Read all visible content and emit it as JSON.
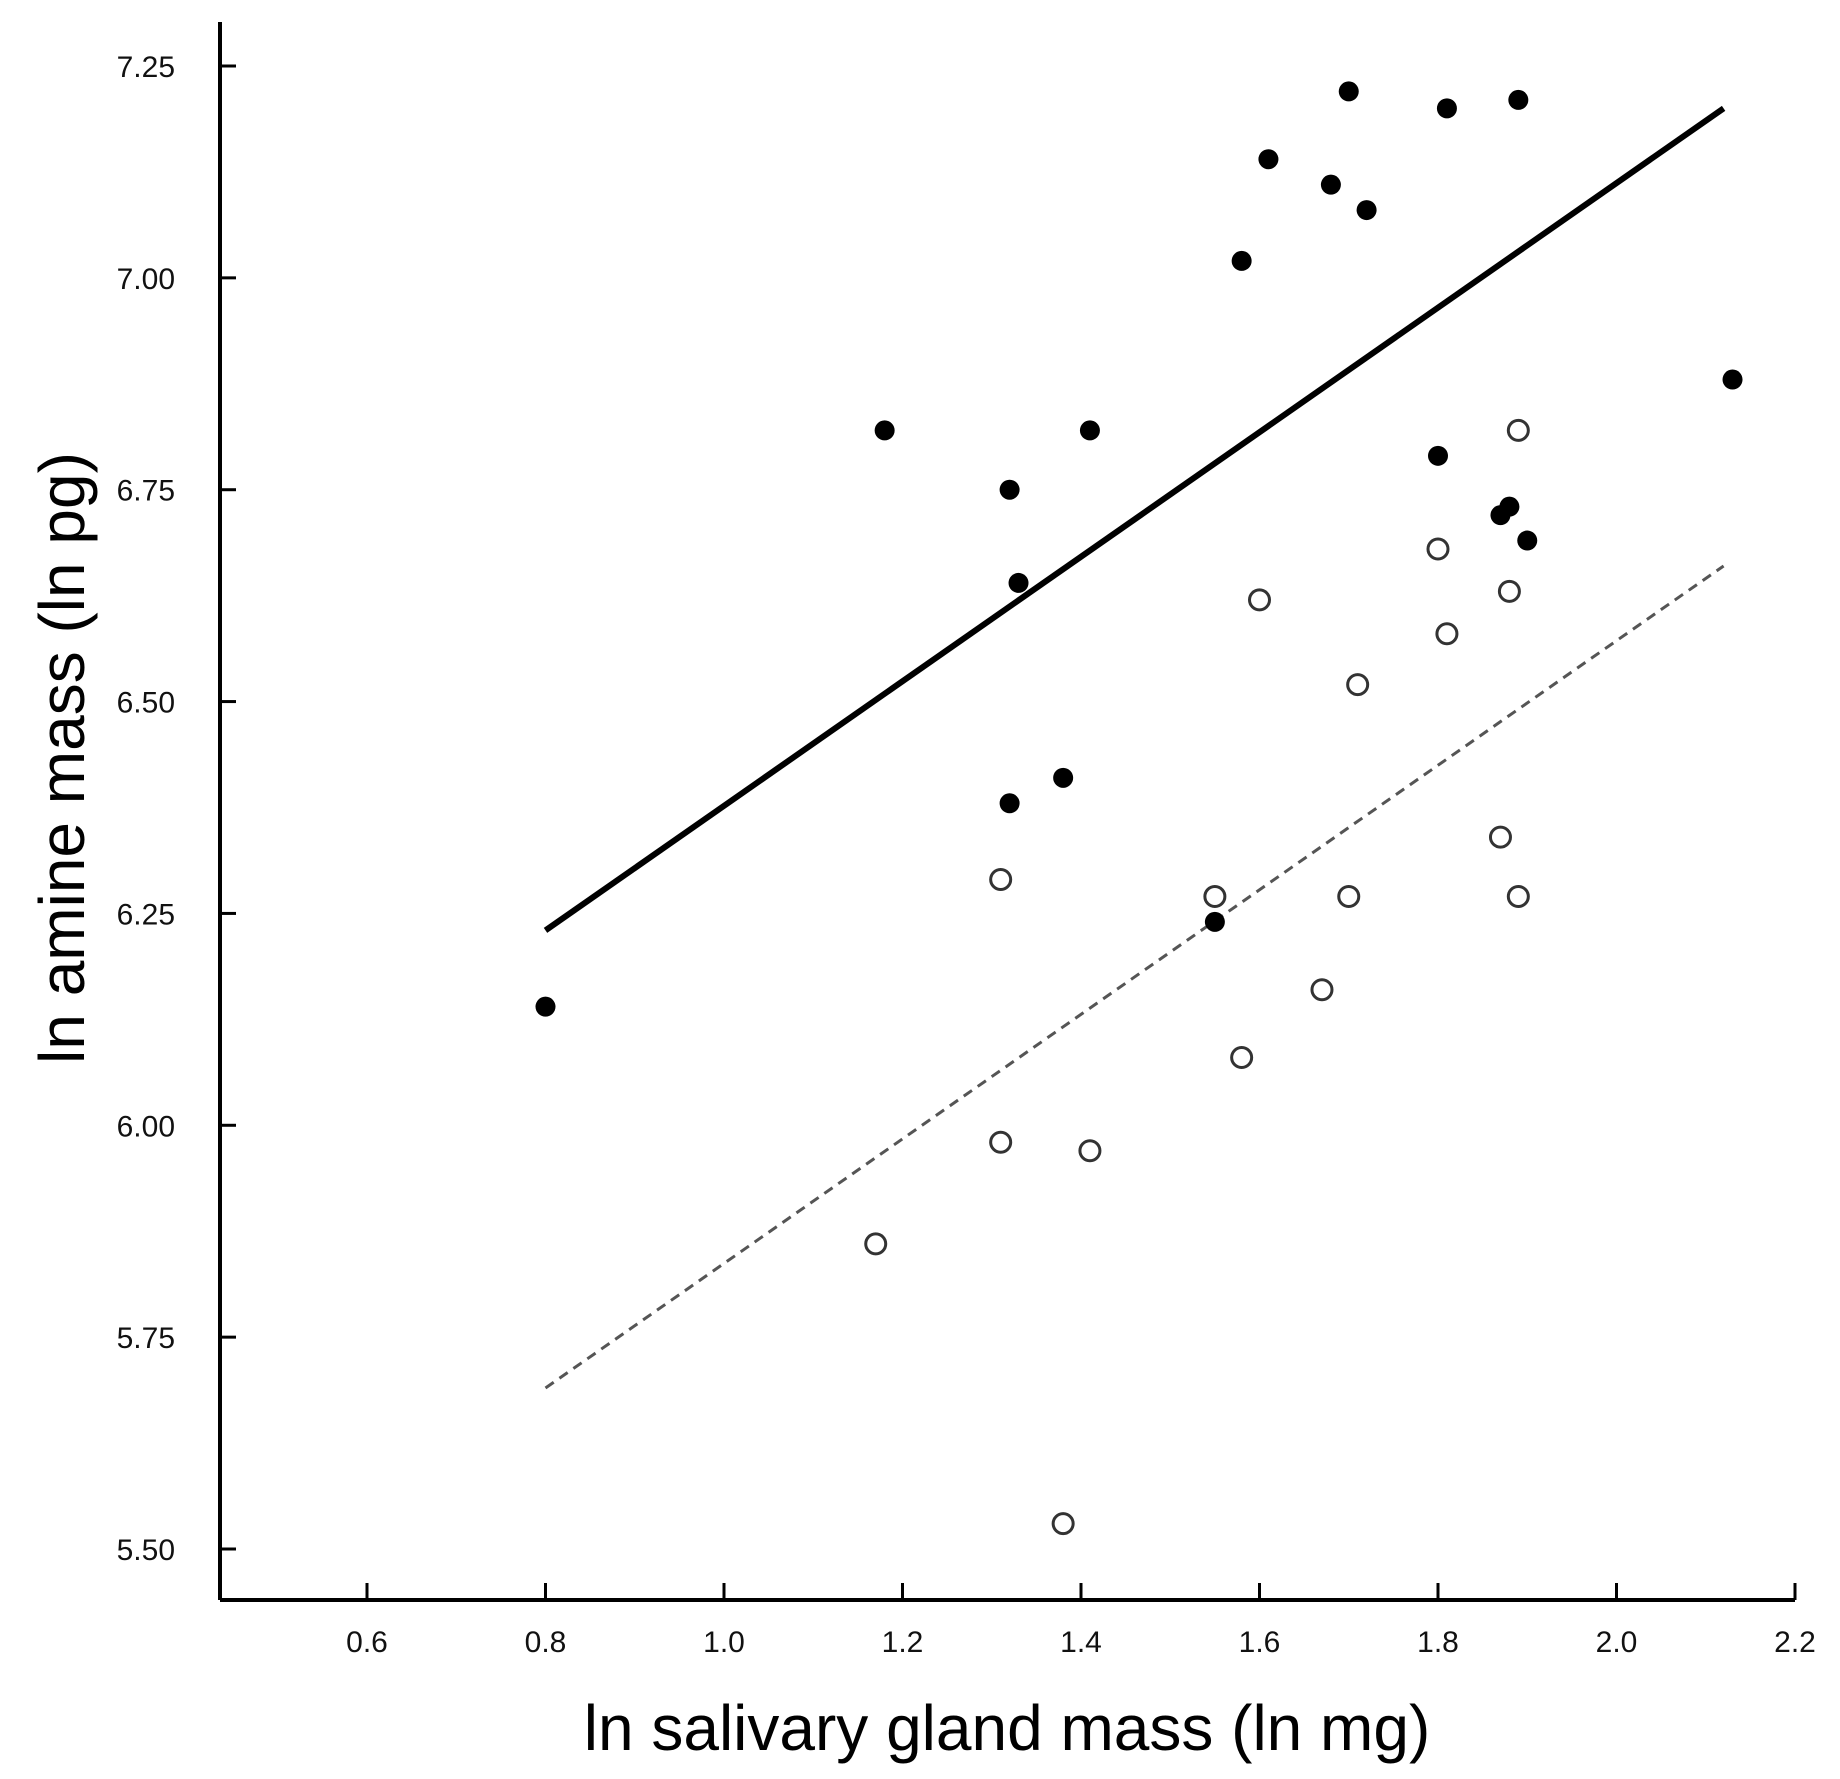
{
  "chart_data": {
    "type": "scatter",
    "title": "",
    "xlabel": "ln salivary gland mass (ln mg)",
    "ylabel": "ln amine mass (ln pg)",
    "xlim": [
      0.44,
      2.2
    ],
    "ylim": [
      5.44,
      7.3
    ],
    "x_ticks": [
      0.6,
      0.8,
      1.0,
      1.2,
      1.4,
      1.6,
      1.8,
      2.0,
      2.2
    ],
    "x_tick_labels": [
      "0.6",
      "0.8",
      "1.0",
      "1.2",
      "1.4",
      "1.6",
      "1.8",
      "2.0",
      "2.2"
    ],
    "y_ticks": [
      5.5,
      5.75,
      6.0,
      6.25,
      6.5,
      6.75,
      7.0,
      7.25
    ],
    "y_tick_labels": [
      "5.50",
      "5.75",
      "6.00",
      "6.25",
      "6.50",
      "6.75",
      "7.00",
      "7.25"
    ],
    "grid": false,
    "series": [
      {
        "name": "filled",
        "marker": "filled-circle",
        "color": "#000000",
        "points": [
          [
            0.8,
            6.14
          ],
          [
            1.18,
            6.82
          ],
          [
            1.32,
            6.75
          ],
          [
            1.33,
            6.64
          ],
          [
            1.41,
            6.82
          ],
          [
            1.32,
            6.38
          ],
          [
            1.38,
            6.41
          ],
          [
            1.55,
            6.24
          ],
          [
            1.58,
            7.02
          ],
          [
            1.61,
            7.14
          ],
          [
            1.68,
            7.11
          ],
          [
            1.7,
            7.22
          ],
          [
            1.72,
            7.08
          ],
          [
            1.81,
            7.2
          ],
          [
            1.89,
            7.21
          ],
          [
            1.8,
            6.79
          ],
          [
            1.87,
            6.72
          ],
          [
            1.88,
            6.73
          ],
          [
            1.9,
            6.69
          ],
          [
            2.13,
            6.88
          ]
        ]
      },
      {
        "name": "open",
        "marker": "open-circle",
        "color": "#333333",
        "points": [
          [
            1.17,
            5.86
          ],
          [
            1.31,
            5.98
          ],
          [
            1.41,
            5.97
          ],
          [
            1.38,
            5.53
          ],
          [
            1.31,
            6.29
          ],
          [
            1.55,
            6.27
          ],
          [
            1.58,
            6.08
          ],
          [
            1.6,
            6.62
          ],
          [
            1.67,
            6.16
          ],
          [
            1.7,
            6.27
          ],
          [
            1.71,
            6.52
          ],
          [
            1.8,
            6.68
          ],
          [
            1.81,
            6.58
          ],
          [
            1.87,
            6.34
          ],
          [
            1.88,
            6.63
          ],
          [
            1.89,
            6.27
          ],
          [
            1.89,
            6.82
          ]
        ]
      }
    ],
    "fit_lines": [
      {
        "name": "filled-regression",
        "style": "solid",
        "color": "#000000",
        "x": [
          0.8,
          2.12
        ],
        "y": [
          6.23,
          7.2
        ]
      },
      {
        "name": "open-regression",
        "style": "dashed",
        "color": "#555555",
        "x": [
          0.8,
          2.12
        ],
        "y": [
          5.69,
          6.66
        ]
      }
    ]
  }
}
